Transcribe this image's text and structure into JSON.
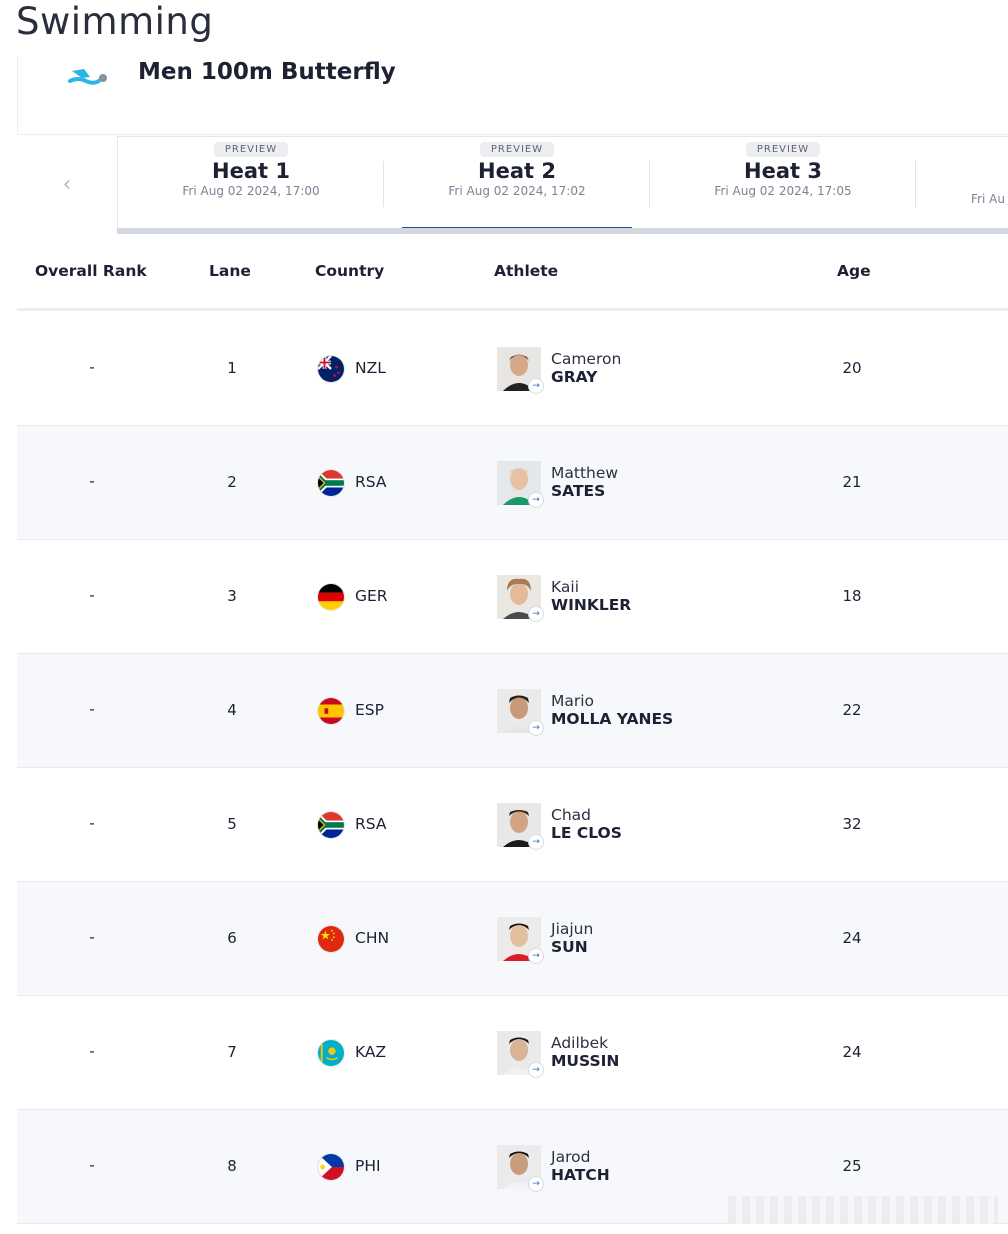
{
  "header": {
    "sport": "Swimming",
    "event": "Men 100m Butterfly"
  },
  "heats": {
    "prev_icon": "chevron-left-icon",
    "tabs": [
      {
        "badge": "PREVIEW",
        "name": "Heat 1",
        "time": "Fri Aug 02 2024, 17:00",
        "active": false
      },
      {
        "badge": "PREVIEW",
        "name": "Heat 2",
        "time": "Fri Aug 02 2024, 17:02",
        "active": true
      },
      {
        "badge": "PREVIEW",
        "name": "Heat 3",
        "time": "Fri Aug 02 2024, 17:05",
        "active": false
      },
      {
        "badge": "",
        "name": "",
        "time": "Fri Au",
        "active": false
      }
    ]
  },
  "table": {
    "columns": [
      "Overall Rank",
      "Lane",
      "Country",
      "Athlete",
      "Age"
    ],
    "rows": [
      {
        "rank": "-",
        "lane": "1",
        "country": "NZL",
        "first": "Cameron",
        "last": "GRAY",
        "age": "20"
      },
      {
        "rank": "-",
        "lane": "2",
        "country": "RSA",
        "first": "Matthew",
        "last": "SATES",
        "age": "21"
      },
      {
        "rank": "-",
        "lane": "3",
        "country": "GER",
        "first": "Kaii",
        "last": "WINKLER",
        "age": "18"
      },
      {
        "rank": "-",
        "lane": "4",
        "country": "ESP",
        "first": "Mario",
        "last": "MOLLA YANES",
        "age": "22"
      },
      {
        "rank": "-",
        "lane": "5",
        "country": "RSA",
        "first": "Chad",
        "last": "LE CLOS",
        "age": "32"
      },
      {
        "rank": "-",
        "lane": "6",
        "country": "CHN",
        "first": "Jiajun",
        "last": "SUN",
        "age": "24"
      },
      {
        "rank": "-",
        "lane": "7",
        "country": "KAZ",
        "first": "Adilbek",
        "last": "MUSSIN",
        "age": "24"
      },
      {
        "rank": "-",
        "lane": "8",
        "country": "PHI",
        "first": "Jarod",
        "last": "HATCH",
        "age": "25"
      }
    ]
  },
  "colors": {
    "accent": "#1e4fa0",
    "icon": "#2bb5e6"
  }
}
